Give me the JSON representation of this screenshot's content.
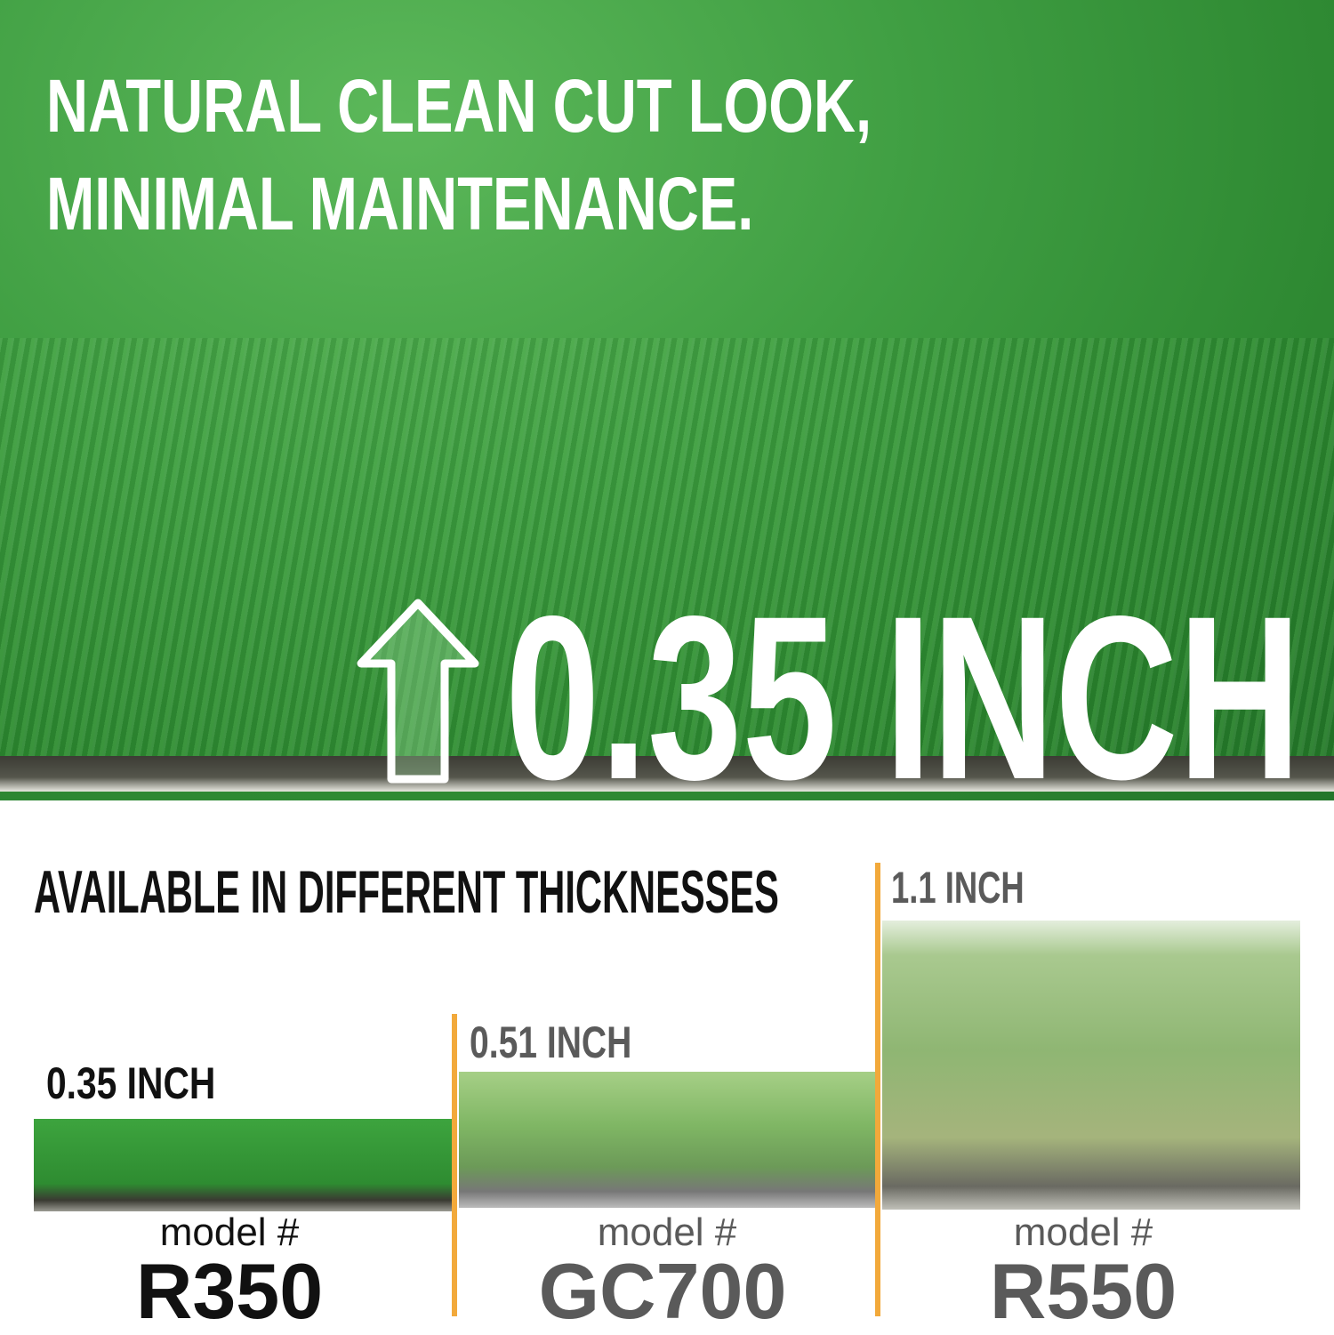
{
  "hero": {
    "headline_line1": "NATURAL CLEAN CUT LOOK,",
    "headline_line2": "MINIMAL MAINTENANCE.",
    "height_value": "0.35 INCH",
    "arrow_icon": "up-arrow-icon"
  },
  "comparison": {
    "title": "AVAILABLE IN DIFFERENT THICKNESSES",
    "accent_color": "#f2a93b",
    "models": [
      {
        "thickness": "0.35 INCH",
        "model_label": "model #",
        "model_code": "R350",
        "text_color": "#111111"
      },
      {
        "thickness": "0.51 INCH",
        "model_label": "model #",
        "model_code": "GC700",
        "text_color": "#5a5a5a"
      },
      {
        "thickness": "1.1 INCH",
        "model_label": "model #",
        "model_code": "R550",
        "text_color": "#5a5a5a"
      }
    ]
  }
}
